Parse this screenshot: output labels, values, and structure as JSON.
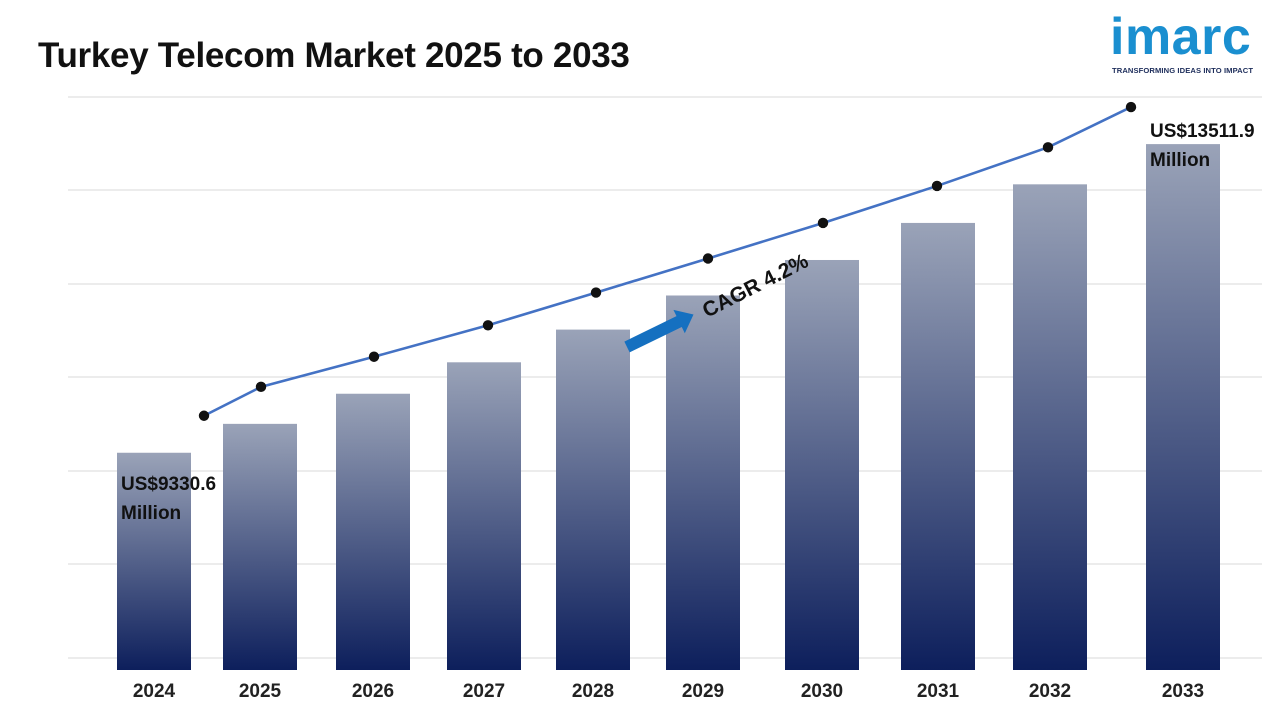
{
  "header": {
    "title": "Turkey Telecom Market 2025 to 2033"
  },
  "logo": {
    "wordmark": "imarc",
    "tagline": "TRANSFORMING IDEAS INTO IMPACT",
    "color": "#1a8fd0"
  },
  "chart_data": {
    "type": "bar",
    "title": "Turkey Telecom Market 2025 to 2033",
    "xlabel": "",
    "ylabel": "",
    "categories": [
      "2024",
      "2025",
      "2026",
      "2027",
      "2028",
      "2029",
      "2030",
      "2031",
      "2032",
      "2033"
    ],
    "series": [
      {
        "values": [
          9330.6,
          9722,
          10130,
          10556,
          10999,
          11461,
          11942,
          12444,
          12967,
          13511.9
        ]
      }
    ],
    "ylim": [
      6550,
      14150
    ],
    "grid": true,
    "annotations": [
      {
        "text": "US$9330.6",
        "sub": "Million",
        "category": "2024"
      },
      {
        "text": "US$13511.9",
        "sub": "Million",
        "category": "2033"
      },
      {
        "text": "CAGR 4.2%"
      }
    ],
    "colors": {
      "bar_top": "#9aa3b8",
      "bar_bottom": "#0d1f5c",
      "line": "#4472c4",
      "marker": "#111111",
      "arrow": "#1570c0",
      "grid": "#d9d9d9"
    }
  }
}
